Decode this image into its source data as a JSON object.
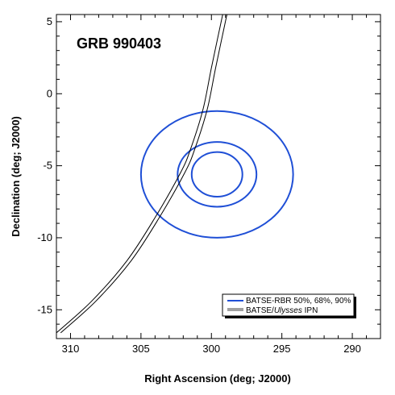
{
  "chart_data": {
    "type": "line",
    "title": "GRB 990403",
    "xlabel": "Right Ascension (deg; J2000)",
    "ylabel": "Declination (deg; J2000)",
    "xlim": [
      311,
      288
    ],
    "ylim": [
      -17,
      5.5
    ],
    "x_ticks": [
      310,
      305,
      300,
      295,
      290
    ],
    "y_ticks": [
      5,
      0,
      -5,
      -10,
      -15
    ],
    "grid": false,
    "legend_position": "bottom-right",
    "colors": {
      "contours": "#1f4fd6",
      "annulus": "#000000"
    },
    "series": [
      {
        "name": "BATSE-RBR 50%, 68%, 90%",
        "kind": "ellipses",
        "center": [
          299.6,
          -5.6
        ],
        "contours": [
          {
            "level": "50%",
            "rx": 1.8,
            "ry": 1.55
          },
          {
            "level": "68%",
            "rx": 2.8,
            "ry": 2.25
          },
          {
            "level": "90%",
            "rx": 5.4,
            "ry": 4.4
          }
        ]
      },
      {
        "name": "BATSE/Ulysses IPN",
        "kind": "annulus",
        "points": [
          [
            311,
            -16.6
          ],
          [
            308.5,
            -14.4
          ],
          [
            306,
            -11.6
          ],
          [
            304,
            -8.6
          ],
          [
            302.2,
            -5.5
          ],
          [
            301.5,
            -3.9
          ],
          [
            300.6,
            -1.1
          ],
          [
            300,
            1.8
          ],
          [
            299.2,
            5.5
          ]
        ],
        "offset_x": 0.3
      }
    ]
  },
  "legend": {
    "entry_1": "BATSE-RBR 50%, 68%, 90%",
    "entry_2_prefix": "BATSE/",
    "entry_2_italic": "Ulysses",
    "entry_2_suffix": " IPN"
  }
}
